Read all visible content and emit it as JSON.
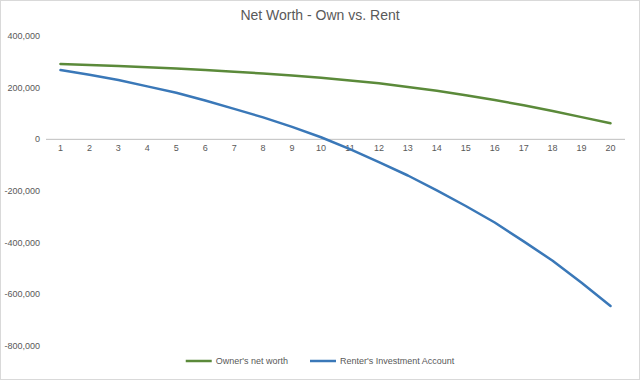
{
  "chart_data": {
    "type": "line",
    "title": "Net Worth - Own vs. Rent",
    "categories": [
      "1",
      "2",
      "3",
      "4",
      "5",
      "6",
      "7",
      "8",
      "9",
      "10",
      "11",
      "12",
      "13",
      "14",
      "15",
      "16",
      "17",
      "18",
      "19",
      "20"
    ],
    "series": [
      {
        "name": "Owner's net worth",
        "color": "#5b8a3a",
        "values": [
          292000,
          288000,
          284000,
          279000,
          274000,
          268000,
          262000,
          255000,
          247000,
          238000,
          228000,
          217000,
          203000,
          188000,
          171000,
          152000,
          132000,
          110000,
          86000,
          62000
        ]
      },
      {
        "name": "Renter's Investment Account",
        "color": "#3a78b8",
        "values": [
          268000,
          250000,
          230000,
          205000,
          180000,
          150000,
          118000,
          85000,
          48000,
          8000,
          -38000,
          -88000,
          -140000,
          -198000,
          -258000,
          -322000,
          -395000,
          -470000,
          -555000,
          -645000
        ]
      }
    ],
    "ylim": [
      -800000,
      400000
    ],
    "yticks": [
      {
        "value": -800000,
        "label": "-800,000"
      },
      {
        "value": -600000,
        "label": "-600,000"
      },
      {
        "value": -400000,
        "label": "-400,000"
      },
      {
        "value": -200000,
        "label": "-200,000"
      },
      0,
      {
        "value": 200000,
        "label": "200,000"
      },
      {
        "value": 400000,
        "label": "400,000"
      }
    ],
    "grid": false,
    "legend": "bottom"
  }
}
